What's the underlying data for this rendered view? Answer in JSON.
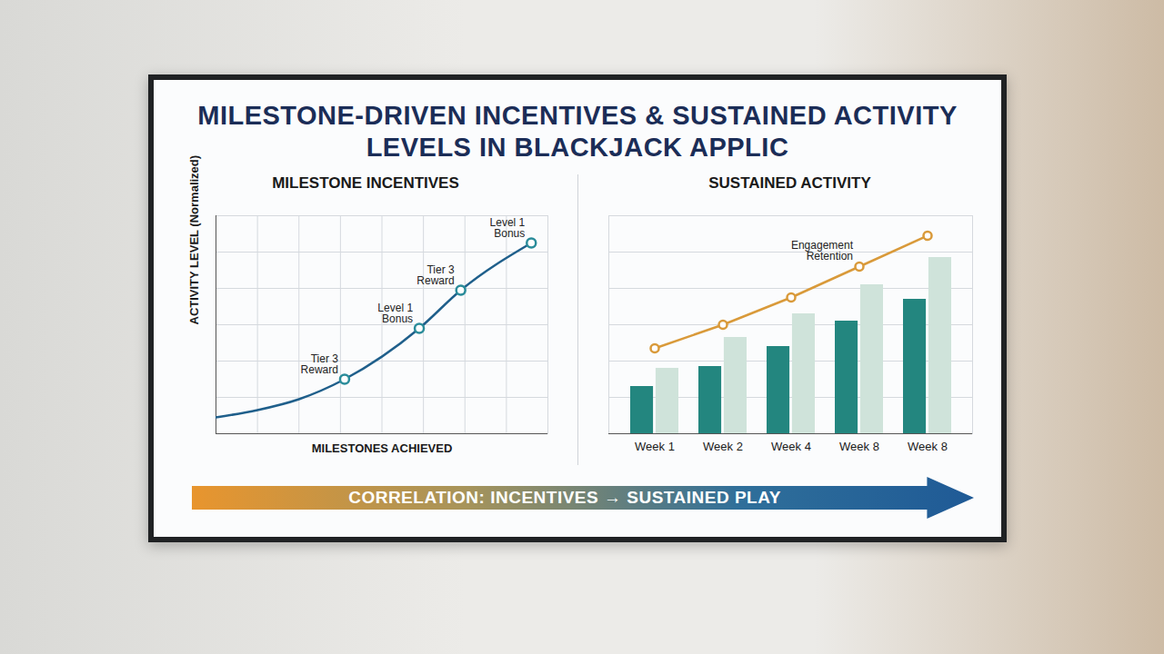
{
  "title": "MILESTONE-DRIVEN INCENTIVES & SUSTAINED ACTIVITY LEVELS IN BLACKJACK APPLIC",
  "banner": "CORRELATION: INCENTIVES → SUSTAINED PLAY",
  "chart_data": [
    {
      "type": "line",
      "title": "MILESTONE INCENTIVES",
      "xlabel": "MILESTONES ACHIEVED",
      "ylabel": "ACTIVITY LEVEL (Normalized)",
      "xlim": [
        0,
        8
      ],
      "xticks": [
        0,
        1,
        2,
        3,
        4,
        5,
        6,
        7,
        8
      ],
      "ylim": [
        0,
        12
      ],
      "yticks": [
        0,
        2,
        4,
        6,
        8,
        10,
        12
      ],
      "grid": true,
      "tick_labels": false,
      "series": [
        {
          "type": "line",
          "color": "#1f5f8b",
          "x": [
            0,
            1,
            2,
            3.1,
            4.9,
            5.9,
            7.6
          ],
          "values": [
            0.9,
            1.3,
            1.9,
            3.0,
            5.8,
            7.9,
            10.5
          ]
        },
        {
          "type": "scatter",
          "marker": "circle",
          "color": "#2a8c9a",
          "x": [
            3.1,
            4.9,
            5.9,
            7.6
          ],
          "values": [
            3.0,
            5.8,
            7.9,
            10.5
          ]
        }
      ],
      "annotations": [
        {
          "text": "Tier 3 Reward",
          "x": 3.1,
          "y": 3.0
        },
        {
          "text": "Level 1 Bonus",
          "x": 4.9,
          "y": 5.8
        },
        {
          "text": "Tier 3 Reward",
          "x": 5.9,
          "y": 7.9
        },
        {
          "text": "Level 1 Bonus",
          "x": 7.6,
          "y": 10.5
        }
      ]
    },
    {
      "type": "bar",
      "title": "SUSTAINED ACTIVITY",
      "categories": [
        "Week 1",
        "Week 2",
        "Week 4",
        "Week 8",
        "Week 8"
      ],
      "ylim": [
        0,
        12
      ],
      "yticks": [
        0,
        2,
        4,
        6,
        8,
        10,
        12
      ],
      "grid": true,
      "tick_labels": "x",
      "series": [
        {
          "color": "#23867f",
          "values": [
            2.6,
            3.7,
            4.8,
            6.2,
            7.4
          ]
        },
        {
          "color": "#cfe3da",
          "values": [
            3.6,
            5.3,
            6.6,
            8.2,
            9.7
          ]
        },
        {
          "name": "Engagement Retention",
          "type": "line",
          "marker": "circle",
          "color": "#d99a3a",
          "values": [
            4.7,
            6.0,
            7.5,
            9.2,
            10.9
          ]
        }
      ]
    }
  ]
}
